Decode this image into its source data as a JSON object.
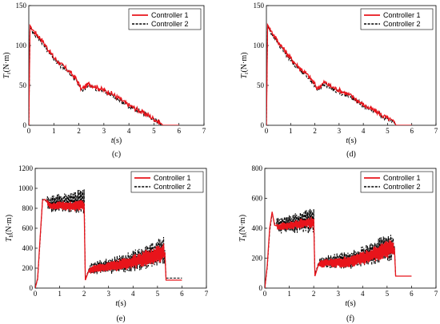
{
  "figure": {
    "colors": {
      "controller1": "#e8141b",
      "controller2": "#000000"
    },
    "line_styles": {
      "controller1": "solid",
      "controller2": "dashed"
    }
  },
  "chart_data": [
    {
      "type": "line",
      "panel_label": "(c)",
      "xlabel_var": "t",
      "xlabel_unit": "(s)",
      "ylabel_var": "T",
      "ylabel_sub": "r",
      "ylabel_unit": "(N·m)",
      "xlim": [
        0,
        7
      ],
      "ylim": [
        0,
        150
      ],
      "xticks": [
        "0",
        "1",
        "2",
        "3",
        "4",
        "5",
        "6",
        "7"
      ],
      "yticks": [
        "0",
        "50",
        "100",
        "150"
      ],
      "legend_position": "top-right",
      "series": [
        {
          "name": "Controller 1",
          "x": [
            0,
            0.05,
            0.2,
            0.5,
            0.8,
            1.0,
            1.3,
            1.6,
            1.9,
            2.1,
            2.4,
            2.7,
            3.0,
            3.3,
            3.6,
            3.9,
            4.2,
            4.5,
            4.8,
            5.1,
            5.3,
            5.35,
            6.0
          ],
          "y": [
            0,
            125,
            118,
            108,
            94,
            85,
            76,
            68,
            58,
            45,
            52,
            48,
            44,
            40,
            34,
            27,
            22,
            17,
            12,
            6,
            2,
            0,
            0
          ]
        },
        {
          "name": "Controller 2",
          "x": [
            0,
            0.05,
            0.2,
            0.5,
            0.8,
            1.0,
            1.3,
            1.6,
            1.9,
            2.1,
            2.4,
            2.7,
            3.0,
            3.3,
            3.6,
            3.9,
            4.2,
            4.5,
            4.8,
            5.1,
            5.3,
            5.35,
            6.0
          ],
          "y": [
            0,
            123,
            116,
            105,
            92,
            84,
            74,
            66,
            57,
            43,
            50,
            46,
            42,
            38,
            32,
            26,
            21,
            16,
            11,
            5,
            1,
            0,
            0
          ]
        }
      ]
    },
    {
      "type": "line",
      "panel_label": "(d)",
      "xlabel_var": "t",
      "xlabel_unit": "(s)",
      "ylabel_var": "T",
      "ylabel_sub": "r",
      "ylabel_unit": "(N·m)",
      "xlim": [
        0,
        7
      ],
      "ylim": [
        0,
        150
      ],
      "xticks": [
        "0",
        "1",
        "2",
        "3",
        "4",
        "5",
        "6",
        "7"
      ],
      "yticks": [
        "0",
        "50",
        "100",
        "150"
      ],
      "legend_position": "top-right",
      "series": [
        {
          "name": "Controller 1",
          "x": [
            0,
            0.05,
            0.2,
            0.5,
            0.8,
            1.0,
            1.3,
            1.6,
            1.9,
            2.1,
            2.4,
            2.7,
            3.0,
            3.3,
            3.6,
            3.9,
            4.2,
            4.5,
            4.8,
            5.1,
            5.3,
            5.35,
            6.0
          ],
          "y": [
            0,
            126,
            118,
            104,
            92,
            84,
            74,
            66,
            56,
            46,
            54,
            48,
            44,
            40,
            35,
            28,
            22,
            18,
            12,
            7,
            3,
            0,
            0
          ]
        },
        {
          "name": "Controller 2",
          "x": [
            0,
            0.05,
            0.2,
            0.5,
            0.8,
            1.0,
            1.3,
            1.6,
            1.9,
            2.1,
            2.4,
            2.7,
            3.0,
            3.3,
            3.6,
            3.9,
            4.2,
            4.5,
            4.8,
            5.1,
            5.3,
            5.35,
            6.0
          ],
          "y": [
            0,
            124,
            116,
            102,
            90,
            82,
            72,
            64,
            55,
            44,
            52,
            46,
            42,
            38,
            33,
            27,
            21,
            17,
            11,
            6,
            2,
            0,
            0
          ]
        }
      ]
    },
    {
      "type": "line",
      "panel_label": "(e)",
      "xlabel_var": "t",
      "xlabel_unit": "(s)",
      "ylabel_var": "T",
      "ylabel_sub": "h",
      "ylabel_unit": "(N·m)",
      "xlim": [
        0,
        7
      ],
      "ylim": [
        0,
        1200
      ],
      "xticks": [
        "0",
        "1",
        "2",
        "3",
        "4",
        "5",
        "6",
        "7"
      ],
      "yticks": [
        "0",
        "200",
        "400",
        "600",
        "800",
        "1000",
        "1200"
      ],
      "legend_position": "top-right",
      "series": [
        {
          "name": "Controller 1",
          "x": [
            0,
            0.1,
            0.2,
            0.3,
            0.4,
            0.6,
            1.0,
            1.5,
            1.9,
            2.0,
            2.05,
            2.2,
            2.6,
            3.0,
            3.5,
            4.0,
            4.5,
            5.0,
            5.3,
            5.35,
            6.0
          ],
          "y": [
            0,
            100,
            500,
            880,
            890,
            820,
            830,
            820,
            830,
            820,
            80,
            180,
            200,
            210,
            230,
            260,
            300,
            340,
            360,
            80,
            80
          ]
        },
        {
          "name": "Controller 2",
          "x": [
            0,
            0.1,
            0.2,
            0.3,
            0.4,
            0.6,
            1.0,
            1.5,
            1.9,
            2.0,
            2.05,
            2.2,
            2.6,
            3.0,
            3.5,
            4.0,
            4.5,
            5.0,
            5.3,
            5.35,
            6.0
          ],
          "y": [
            0,
            90,
            480,
            890,
            880,
            840,
            850,
            860,
            870,
            880,
            90,
            190,
            210,
            220,
            240,
            270,
            310,
            360,
            380,
            100,
            100
          ]
        }
      ]
    },
    {
      "type": "line",
      "panel_label": "(f)",
      "xlabel_var": "t",
      "xlabel_unit": "(s)",
      "ylabel_var": "T",
      "ylabel_sub": "h",
      "ylabel_unit": "(N·m)",
      "xlim": [
        0,
        7
      ],
      "ylim": [
        0,
        800
      ],
      "xticks": [
        "0",
        "1",
        "2",
        "3",
        "4",
        "5",
        "6",
        "7"
      ],
      "yticks": [
        "0",
        "200",
        "400",
        "600",
        "800"
      ],
      "legend_position": "top-right",
      "series": [
        {
          "name": "Controller 1",
          "x": [
            0,
            0.1,
            0.2,
            0.3,
            0.4,
            0.6,
            1.0,
            1.5,
            1.9,
            2.0,
            2.05,
            2.2,
            2.6,
            3.0,
            3.5,
            4.0,
            4.5,
            5.0,
            5.3,
            5.35,
            6.0
          ],
          "y": [
            0,
            150,
            400,
            510,
            420,
            410,
            420,
            430,
            440,
            440,
            80,
            160,
            170,
            170,
            180,
            200,
            230,
            260,
            270,
            80,
            80
          ]
        },
        {
          "name": "Controller 2",
          "x": [
            0,
            0.1,
            0.2,
            0.3,
            0.4,
            0.6,
            1.0,
            1.5,
            1.9,
            2.0,
            2.05,
            2.2,
            2.6,
            3.0,
            3.5,
            4.0,
            4.5,
            5.0,
            5.3,
            5.35,
            6.0
          ],
          "y": [
            0,
            140,
            380,
            500,
            430,
            420,
            430,
            440,
            450,
            450,
            90,
            170,
            180,
            180,
            190,
            210,
            240,
            270,
            280,
            80,
            80
          ]
        }
      ]
    }
  ]
}
